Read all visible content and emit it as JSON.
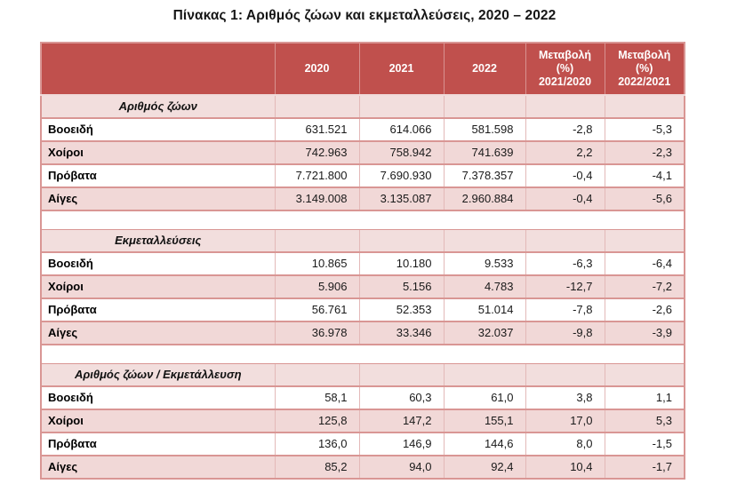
{
  "title": "Πίνακας 1:  Αριθμός ζώων και εκμεταλλεύσεις,  2020 – 2022",
  "colors": {
    "header_bg": "#c0504d",
    "header_text": "#ffffff",
    "section_row_bg": "#f2dedd",
    "banded_row_bg": "#f1d8d7",
    "row_border": "#d99694",
    "column_divider": "#e3b9b8",
    "title_text": "#161616"
  },
  "table": {
    "columns": [
      "",
      "2020",
      "2021",
      "2022",
      "Μεταβολή (%) 2021/2020",
      "Μεταβολή (%) 2022/2021"
    ],
    "sections": [
      {
        "header": "Αριθμός ζώων",
        "rows": [
          {
            "label": "Βοοειδή",
            "values": [
              "631.521",
              "614.066",
              "581.598",
              "-2,8",
              "-5,3"
            ]
          },
          {
            "label": "Χοίροι",
            "values": [
              "742.963",
              "758.942",
              "741.639",
              "2,2",
              "-2,3"
            ]
          },
          {
            "label": "Πρόβατα",
            "values": [
              "7.721.800",
              "7.690.930",
              "7.378.357",
              "-0,4",
              "-4,1"
            ]
          },
          {
            "label": "Αίγες",
            "values": [
              "3.149.008",
              "3.135.087",
              "2.960.884",
              "-0,4",
              "-5,6"
            ]
          }
        ]
      },
      {
        "header": "Εκμεταλλεύσεις",
        "rows": [
          {
            "label": "Βοοειδή",
            "values": [
              "10.865",
              "10.180",
              "9.533",
              "-6,3",
              "-6,4"
            ]
          },
          {
            "label": "Χοίροι",
            "values": [
              "5.906",
              "5.156",
              "4.783",
              "-12,7",
              "-7,2"
            ]
          },
          {
            "label": "Πρόβατα",
            "values": [
              "56.761",
              "52.353",
              "51.014",
              "-7,8",
              "-2,6"
            ]
          },
          {
            "label": "Αίγες",
            "values": [
              "36.978",
              "33.346",
              "32.037",
              "-9,8",
              "-3,9"
            ]
          }
        ]
      },
      {
        "header": "Αριθμός ζώων / Εκμετάλλευση",
        "rows": [
          {
            "label": "Βοοειδή",
            "values": [
              "58,1",
              "60,3",
              "61,0",
              "3,8",
              "1,1"
            ]
          },
          {
            "label": "Χοίροι",
            "values": [
              "125,8",
              "147,2",
              "155,1",
              "17,0",
              "5,3"
            ]
          },
          {
            "label": "Πρόβατα",
            "values": [
              "136,0",
              "146,9",
              "144,6",
              "8,0",
              "-1,5"
            ]
          },
          {
            "label": "Αίγες",
            "values": [
              "85,2",
              "94,0",
              "92,4",
              "10,4",
              "-1,7"
            ]
          }
        ]
      }
    ]
  }
}
